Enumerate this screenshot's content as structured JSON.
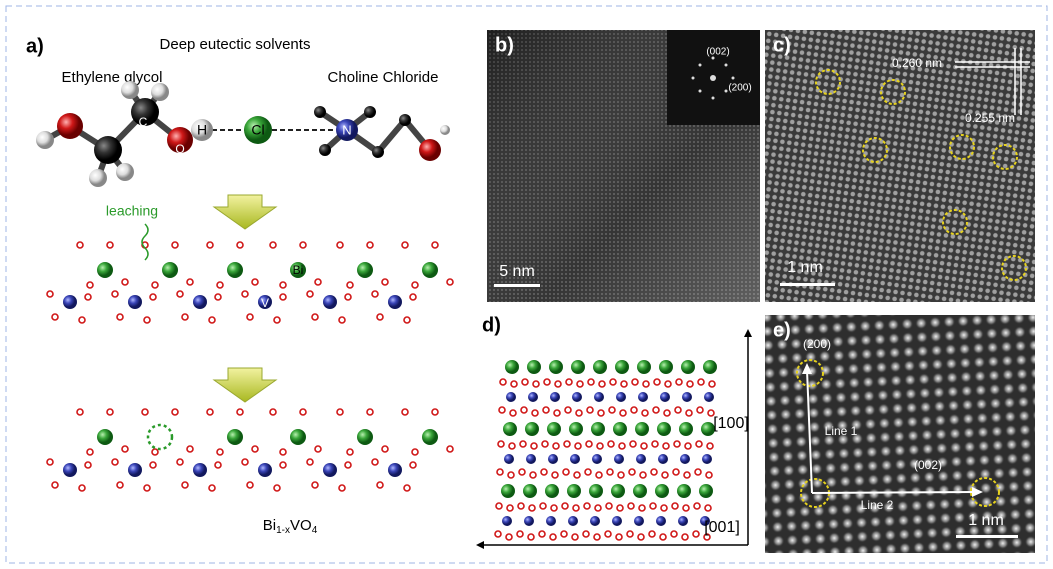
{
  "panel_a": {
    "label": "a)",
    "title": "Deep eutectic solvents",
    "molecule_1": "Ethylene glycol",
    "molecule_2": "Choline Chloride",
    "atom_labels": [
      "C",
      "O",
      "H",
      "Cl",
      "N"
    ],
    "leaching": "leaching",
    "bi_label": "Bi",
    "v_label": "V",
    "formula": {
      "base": "Bi",
      "sub": "1-x",
      "middle": "VO",
      "sub2": "4"
    }
  },
  "panel_b": {
    "label": "b)",
    "fft_spots": [
      "(002)",
      "(200)"
    ],
    "scale_bar": "5 nm"
  },
  "panel_c": {
    "label": "c)",
    "spacings": [
      "0.260 nm",
      "0.255 nm"
    ],
    "scale_bar": "1 nm"
  },
  "panel_d": {
    "label": "d)",
    "axis_vertical": "[100]",
    "axis_horizontal": "[001]"
  },
  "panel_e": {
    "label": "e)",
    "planes": [
      "(200)",
      "(002)"
    ],
    "lines": [
      "Line 1",
      "Line 2"
    ],
    "scale_bar": "1 nm"
  }
}
